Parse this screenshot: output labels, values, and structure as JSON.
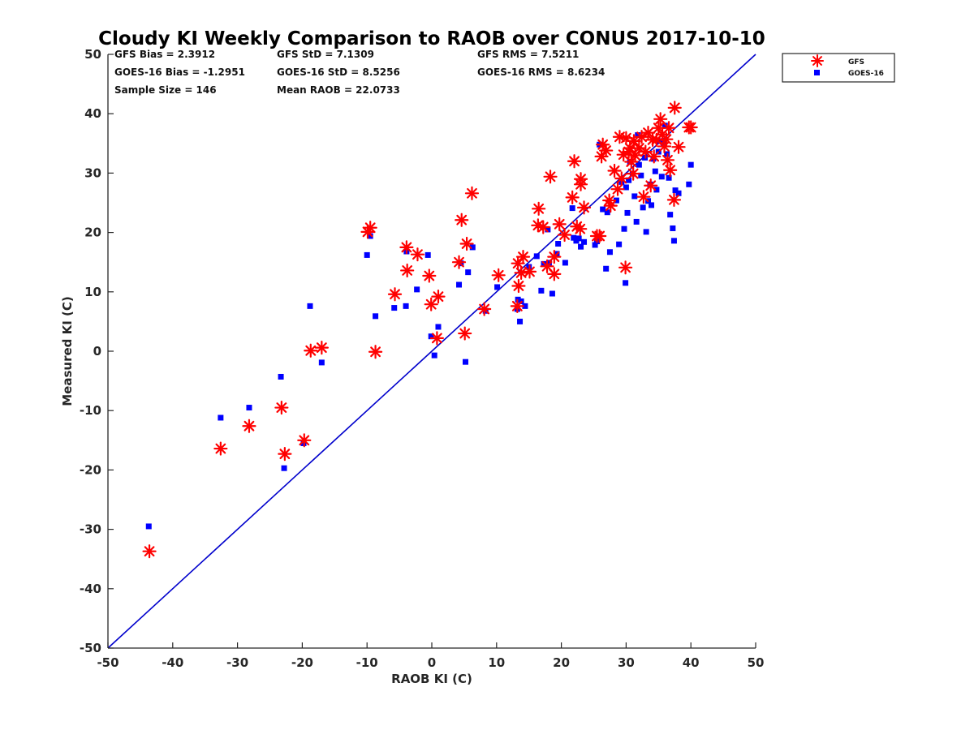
{
  "chart_data": {
    "type": "scatter",
    "title": "Cloudy KI Weekly Comparison to RAOB over CONUS 2017-10-10",
    "xlabel": "RAOB KI (C)",
    "ylabel": "Measured KI (C)",
    "xlim": [
      -50,
      50
    ],
    "ylim": [
      -50,
      50
    ],
    "xticks": [
      "-50",
      "-40",
      "-30",
      "-20",
      "-10",
      "0",
      "10",
      "20",
      "30",
      "40",
      "50"
    ],
    "yticks": [
      "-50",
      "-40",
      "-30",
      "-20",
      "-10",
      "0",
      "10",
      "20",
      "30",
      "40",
      "50"
    ],
    "grid": false,
    "legend_position": "outside-top-right",
    "reference_line": {
      "from": [
        -50,
        -50
      ],
      "to": [
        50,
        50
      ],
      "color": "#0000CC"
    },
    "stats": {
      "gfs_bias": "GFS Bias = 2.3912",
      "gfs_std": "GFS StD = 7.1309",
      "gfs_rms": "GFS RMS = 7.5211",
      "goes_bias": "GOES-16 Bias = -1.2951",
      "goes_std": "GOES-16 StD = 8.5256",
      "goes_rms": "GOES-16 RMS = 8.6234",
      "sample_size": "Sample Size = 146",
      "mean_raob": "Mean RAOB = 22.0733"
    },
    "series": [
      {
        "name": "GFS",
        "marker": "asterisk",
        "color": "#FF0000",
        "points": [
          [
            -43.6,
            -33.7
          ],
          [
            -32.6,
            -16.4
          ],
          [
            -28.2,
            -12.6
          ],
          [
            -23.2,
            -9.5
          ],
          [
            -22.7,
            -17.3
          ],
          [
            -19.7,
            -15.0
          ],
          [
            -18.7,
            0.1
          ],
          [
            -17.0,
            0.6
          ],
          [
            -9.9,
            20.1
          ],
          [
            -9.5,
            20.8
          ],
          [
            -8.7,
            -0.1
          ],
          [
            -5.7,
            9.6
          ],
          [
            -3.9,
            17.5
          ],
          [
            -3.8,
            13.6
          ],
          [
            -2.2,
            16.3
          ],
          [
            -0.4,
            12.7
          ],
          [
            -0.1,
            7.9
          ],
          [
            0.8,
            2.2
          ],
          [
            1.0,
            9.2
          ],
          [
            4.2,
            15.0
          ],
          [
            4.6,
            22.1
          ],
          [
            5.1,
            3.0
          ],
          [
            5.4,
            18.1
          ],
          [
            6.2,
            26.6
          ],
          [
            8.1,
            7.1
          ],
          [
            10.3,
            12.8
          ],
          [
            13.2,
            7.6
          ],
          [
            13.3,
            14.8
          ],
          [
            13.4,
            11.0
          ],
          [
            13.8,
            13.2
          ],
          [
            14.1,
            15.9
          ],
          [
            15.1,
            13.4
          ],
          [
            16.4,
            21.2
          ],
          [
            16.5,
            24.0
          ],
          [
            17.2,
            20.9
          ],
          [
            17.8,
            14.3
          ],
          [
            18.3,
            29.4
          ],
          [
            18.9,
            13.0
          ],
          [
            18.9,
            15.9
          ],
          [
            19.7,
            21.4
          ],
          [
            20.5,
            19.6
          ],
          [
            21.7,
            25.9
          ],
          [
            22.0,
            32.0
          ],
          [
            22.4,
            21.0
          ],
          [
            22.9,
            20.6
          ],
          [
            23.0,
            29.0
          ],
          [
            23.0,
            28.1
          ],
          [
            23.5,
            24.2
          ],
          [
            25.5,
            19.4
          ],
          [
            25.9,
            19.4
          ],
          [
            26.2,
            32.8
          ],
          [
            26.4,
            34.8
          ],
          [
            26.9,
            33.8
          ],
          [
            27.4,
            25.4
          ],
          [
            27.6,
            24.5
          ],
          [
            28.2,
            30.4
          ],
          [
            28.7,
            27.3
          ],
          [
            29.0,
            36.1
          ],
          [
            29.3,
            29.1
          ],
          [
            29.6,
            33.1
          ],
          [
            29.9,
            14.1
          ],
          [
            30.0,
            35.9
          ],
          [
            30.4,
            33.6
          ],
          [
            30.6,
            34.2
          ],
          [
            30.8,
            31.9
          ],
          [
            31.1,
            29.9
          ],
          [
            31.2,
            35.4
          ],
          [
            31.4,
            33.0
          ],
          [
            32.0,
            34.2
          ],
          [
            32.4,
            36.1
          ],
          [
            32.7,
            26.0
          ],
          [
            33.0,
            33.6
          ],
          [
            33.4,
            36.8
          ],
          [
            33.8,
            27.9
          ],
          [
            34.1,
            35.6
          ],
          [
            34.3,
            32.8
          ],
          [
            34.7,
            35.6
          ],
          [
            35.0,
            37.6
          ],
          [
            35.3,
            39.1
          ],
          [
            35.6,
            36.5
          ],
          [
            35.9,
            34.5
          ],
          [
            36.2,
            35.7
          ],
          [
            36.4,
            32.2
          ],
          [
            36.6,
            37.6
          ],
          [
            36.8,
            30.5
          ],
          [
            37.4,
            25.5
          ],
          [
            37.5,
            41.0
          ],
          [
            38.1,
            34.4
          ],
          [
            39.7,
            37.7
          ],
          [
            40.0,
            37.7
          ]
        ]
      },
      {
        "name": "GOES-16",
        "marker": "square",
        "color": "#0000FF",
        "points": [
          [
            -43.7,
            -29.5
          ],
          [
            -32.6,
            -11.2
          ],
          [
            -28.2,
            -9.5
          ],
          [
            -23.3,
            -4.3
          ],
          [
            -22.8,
            -19.7
          ],
          [
            -19.8,
            -15.5
          ],
          [
            -18.8,
            7.6
          ],
          [
            -17.0,
            -1.9
          ],
          [
            -10.0,
            16.2
          ],
          [
            -9.5,
            19.4
          ],
          [
            -8.7,
            5.9
          ],
          [
            -5.8,
            7.3
          ],
          [
            -4.0,
            7.6
          ],
          [
            -3.9,
            16.8
          ],
          [
            -2.3,
            10.4
          ],
          [
            -0.6,
            16.2
          ],
          [
            -0.1,
            2.5
          ],
          [
            0.4,
            -0.7
          ],
          [
            1.0,
            4.1
          ],
          [
            4.2,
            11.2
          ],
          [
            4.5,
            14.8
          ],
          [
            5.2,
            -1.8
          ],
          [
            5.6,
            13.3
          ],
          [
            6.3,
            17.5
          ],
          [
            8.3,
            6.8
          ],
          [
            10.1,
            10.8
          ],
          [
            13.2,
            7.1
          ],
          [
            13.3,
            8.7
          ],
          [
            13.6,
            5.0
          ],
          [
            13.8,
            8.4
          ],
          [
            14.4,
            7.6
          ],
          [
            15.0,
            14.2
          ],
          [
            16.2,
            16.0
          ],
          [
            16.9,
            10.2
          ],
          [
            17.3,
            14.7
          ],
          [
            17.9,
            20.5
          ],
          [
            18.1,
            14.9
          ],
          [
            18.6,
            9.7
          ],
          [
            19.3,
            16.4
          ],
          [
            19.5,
            18.1
          ],
          [
            20.6,
            14.9
          ],
          [
            21.7,
            24.1
          ],
          [
            21.9,
            19.1
          ],
          [
            22.3,
            18.6
          ],
          [
            22.7,
            19.0
          ],
          [
            23.0,
            17.6
          ],
          [
            23.5,
            18.4
          ],
          [
            25.2,
            17.9
          ],
          [
            25.5,
            18.5
          ],
          [
            25.9,
            34.8
          ],
          [
            26.4,
            23.9
          ],
          [
            26.9,
            13.9
          ],
          [
            27.1,
            23.4
          ],
          [
            27.5,
            16.7
          ],
          [
            28.5,
            25.4
          ],
          [
            28.9,
            18.0
          ],
          [
            29.3,
            28.5
          ],
          [
            29.7,
            20.6
          ],
          [
            29.9,
            11.5
          ],
          [
            30.0,
            27.6
          ],
          [
            30.2,
            23.3
          ],
          [
            30.4,
            28.8
          ],
          [
            30.6,
            31.9
          ],
          [
            31.0,
            29.9
          ],
          [
            31.3,
            26.1
          ],
          [
            31.6,
            21.8
          ],
          [
            31.8,
            36.4
          ],
          [
            32.0,
            31.4
          ],
          [
            32.3,
            29.6
          ],
          [
            32.6,
            24.2
          ],
          [
            32.9,
            32.6
          ],
          [
            33.1,
            20.1
          ],
          [
            33.4,
            25.3
          ],
          [
            33.7,
            28.1
          ],
          [
            33.9,
            24.6
          ],
          [
            34.2,
            32.4
          ],
          [
            34.5,
            30.3
          ],
          [
            34.7,
            27.2
          ],
          [
            35.0,
            33.6
          ],
          [
            35.2,
            35.4
          ],
          [
            35.5,
            29.4
          ],
          [
            35.8,
            35.1
          ],
          [
            36.0,
            38.0
          ],
          [
            36.3,
            33.2
          ],
          [
            36.6,
            29.2
          ],
          [
            36.8,
            23.0
          ],
          [
            37.2,
            20.7
          ],
          [
            37.4,
            18.6
          ],
          [
            37.6,
            27.1
          ],
          [
            38.1,
            26.6
          ],
          [
            39.7,
            28.1
          ],
          [
            40.0,
            31.4
          ]
        ]
      }
    ]
  }
}
